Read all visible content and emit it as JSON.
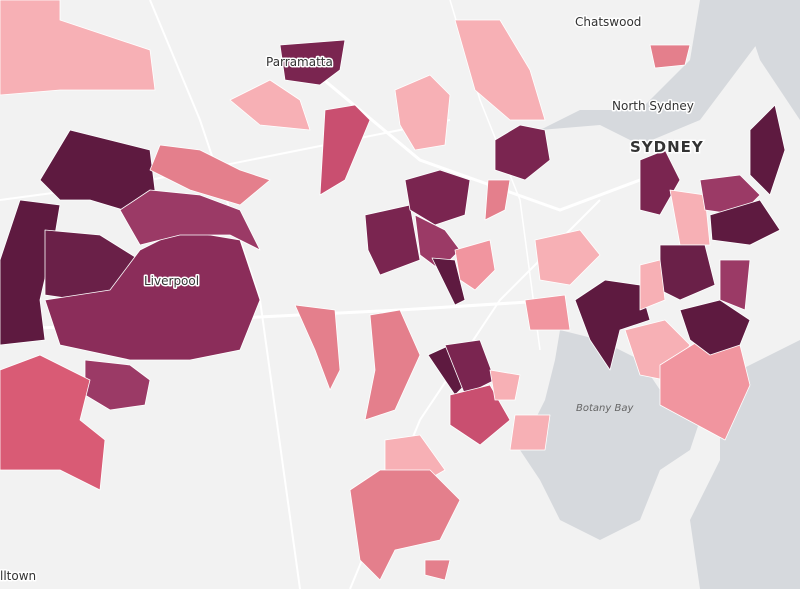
{
  "labels": [
    "Chatswood",
    "Parramatta",
    "North Sydney",
    "SYDNEY",
    "Liverpool",
    "Botany Bay",
    "lltown"
  ]
}
